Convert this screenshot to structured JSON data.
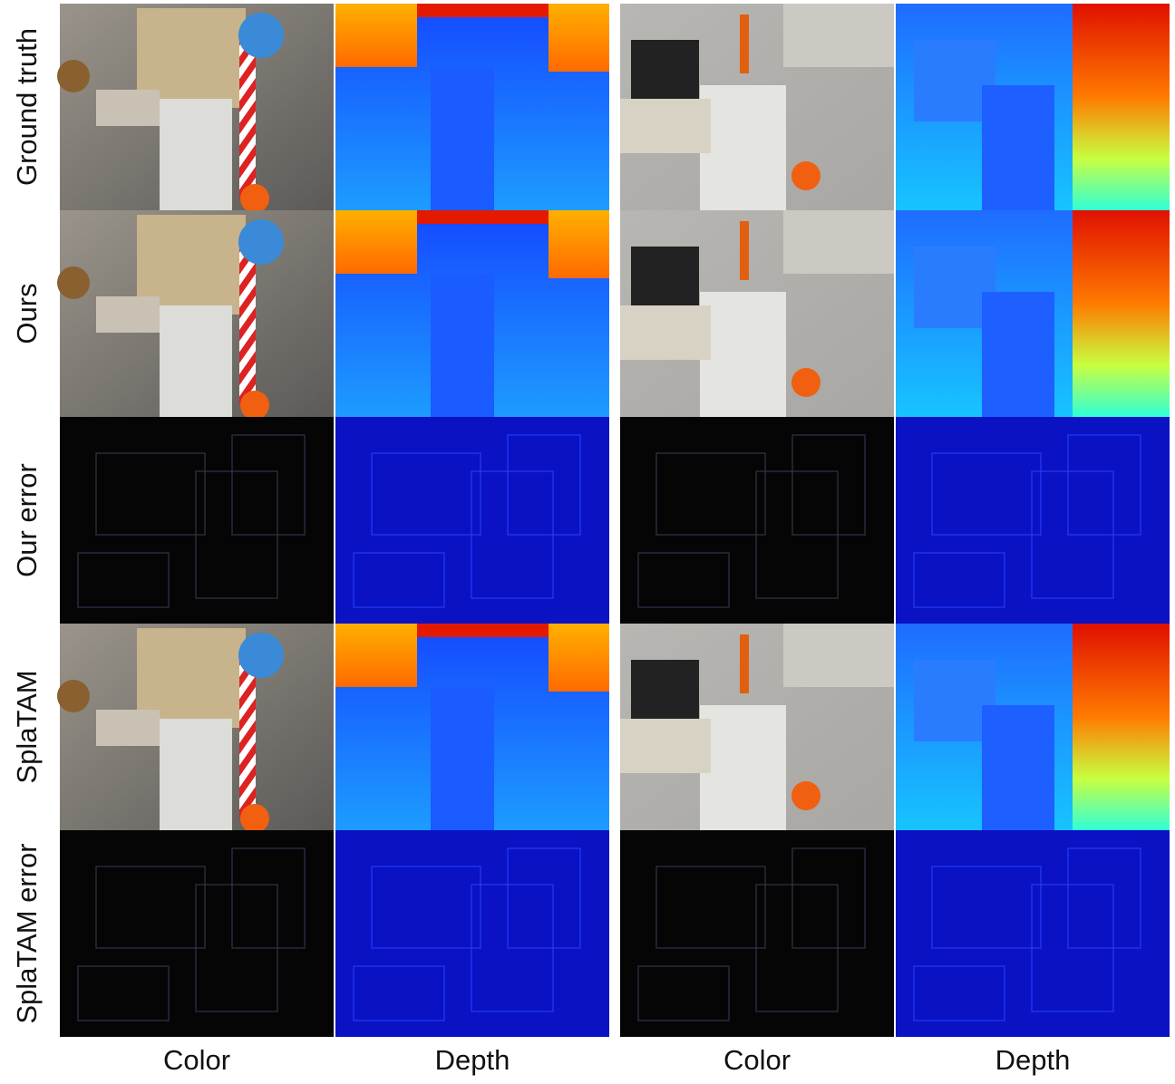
{
  "row_labels": [
    "Ground truth",
    "Ours",
    "Our error",
    "SplaTAM",
    "SplaTAM error"
  ],
  "column_labels": [
    "Color",
    "Depth",
    "Color",
    "Depth"
  ]
}
